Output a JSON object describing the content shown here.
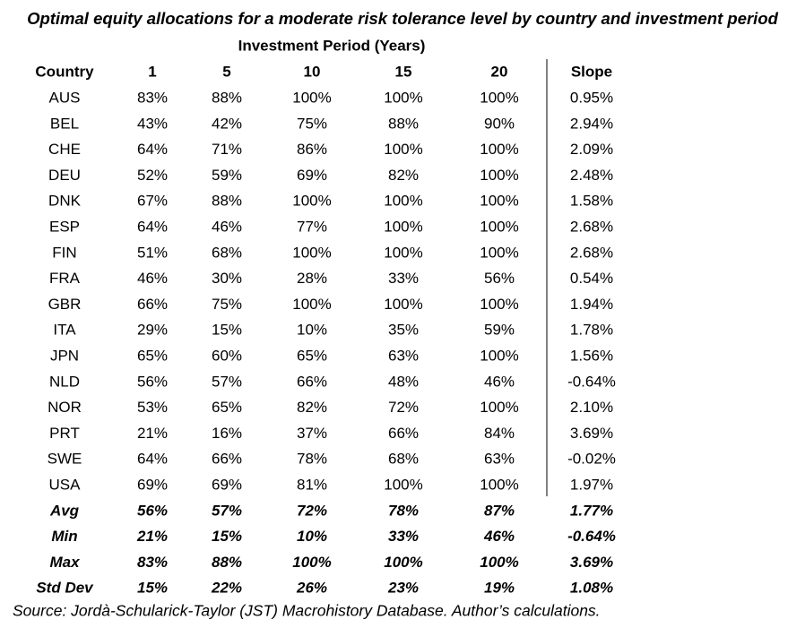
{
  "title": "Optimal equity allocations for a moderate risk tolerance level by country and investment period",
  "subtitle": "Investment Period (Years)",
  "table": {
    "header": [
      "Country",
      "1",
      "5",
      "10",
      "15",
      "20",
      "Slope"
    ],
    "rows": [
      [
        "AUS",
        "83%",
        "88%",
        "100%",
        "100%",
        "100%",
        "0.95%"
      ],
      [
        "BEL",
        "43%",
        "42%",
        "75%",
        "88%",
        "90%",
        "2.94%"
      ],
      [
        "CHE",
        "64%",
        "71%",
        "86%",
        "100%",
        "100%",
        "2.09%"
      ],
      [
        "DEU",
        "52%",
        "59%",
        "69%",
        "82%",
        "100%",
        "2.48%"
      ],
      [
        "DNK",
        "67%",
        "88%",
        "100%",
        "100%",
        "100%",
        "1.58%"
      ],
      [
        "ESP",
        "64%",
        "46%",
        "77%",
        "100%",
        "100%",
        "2.68%"
      ],
      [
        "FIN",
        "51%",
        "68%",
        "100%",
        "100%",
        "100%",
        "2.68%"
      ],
      [
        "FRA",
        "46%",
        "30%",
        "28%",
        "33%",
        "56%",
        "0.54%"
      ],
      [
        "GBR",
        "66%",
        "75%",
        "100%",
        "100%",
        "100%",
        "1.94%"
      ],
      [
        "ITA",
        "29%",
        "15%",
        "10%",
        "35%",
        "59%",
        "1.78%"
      ],
      [
        "JPN",
        "65%",
        "60%",
        "65%",
        "63%",
        "100%",
        "1.56%"
      ],
      [
        "NLD",
        "56%",
        "57%",
        "66%",
        "48%",
        "46%",
        "-0.64%"
      ],
      [
        "NOR",
        "53%",
        "65%",
        "82%",
        "72%",
        "100%",
        "2.10%"
      ],
      [
        "PRT",
        "21%",
        "16%",
        "37%",
        "66%",
        "84%",
        "3.69%"
      ],
      [
        "SWE",
        "64%",
        "66%",
        "78%",
        "68%",
        "63%",
        "-0.02%"
      ],
      [
        "USA",
        "69%",
        "69%",
        "81%",
        "100%",
        "100%",
        "1.97%"
      ]
    ],
    "summary_rows": [
      [
        "Avg",
        "56%",
        "57%",
        "72%",
        "78%",
        "87%",
        "1.77%"
      ],
      [
        "Min",
        "21%",
        "15%",
        "10%",
        "33%",
        "46%",
        "-0.64%"
      ],
      [
        "Max",
        "83%",
        "88%",
        "100%",
        "100%",
        "100%",
        "3.69%"
      ],
      [
        "Std Dev",
        "15%",
        "22%",
        "26%",
        "23%",
        "19%",
        "1.08%"
      ]
    ]
  },
  "source": "Source: Jordà-Schularick-Taylor (JST) Macrohistory Database. Author’s calculations."
}
